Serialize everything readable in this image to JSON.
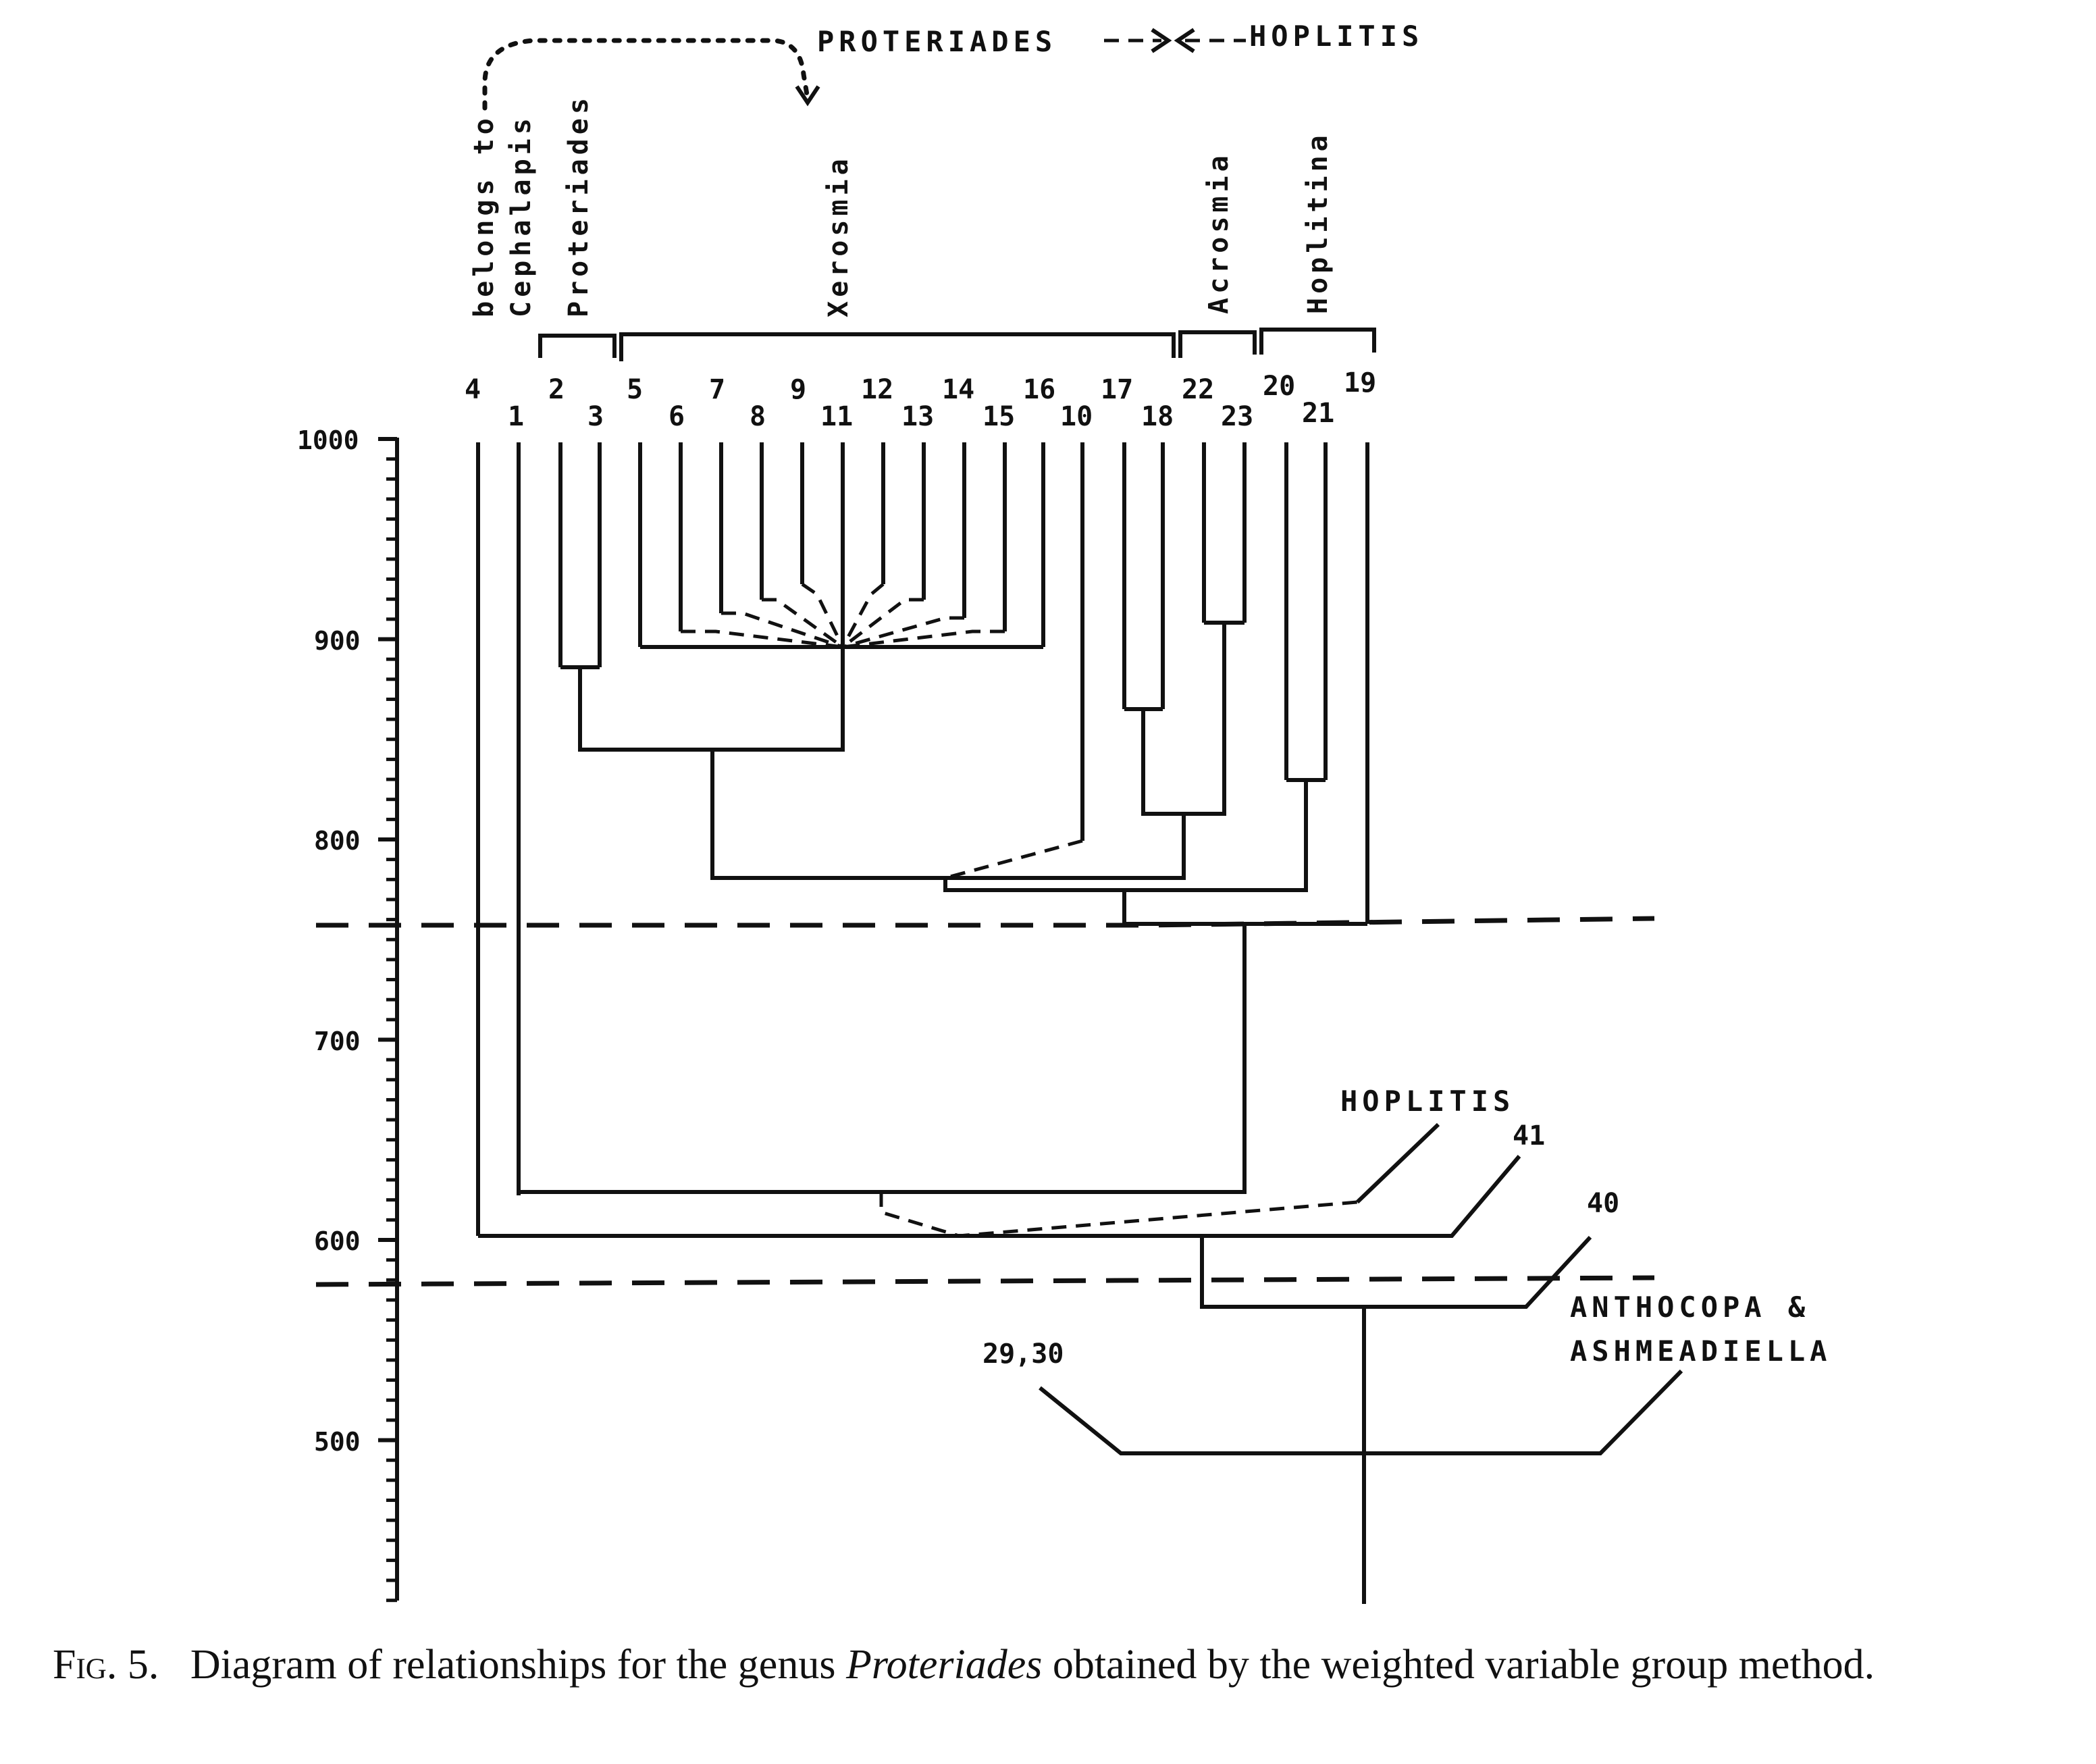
{
  "top_header": {
    "left": "PROTERIADES",
    "right": "HOPLITIS"
  },
  "group_labels": {
    "cephalapis_line1": "belongs to",
    "cephalapis_line2": "Cephalapis",
    "proteriades": "Proteriades",
    "xerosmia": "Xerosmia",
    "acrosmia": "Acrosmia",
    "hoplitina": "Hoplitina"
  },
  "leaf_labels": [
    "4",
    "1",
    "2",
    "3",
    "5",
    "6",
    "7",
    "8",
    "9",
    "11",
    "12",
    "13",
    "14",
    "15",
    "16",
    "10",
    "17",
    "18",
    "22",
    "23",
    "20",
    "21",
    "19"
  ],
  "axis": {
    "ticks": [
      "1000",
      "900",
      "800",
      "700",
      "600",
      "500"
    ]
  },
  "outgroups": {
    "hoplitis": "HOPLITIS",
    "n41": "41",
    "n40": "40",
    "anthocopa_line1": "ANTHOCOPA &",
    "anthocopa_line2": "ASHMEADIELLA",
    "n2930": "29,30"
  },
  "caption": {
    "fig_label": "Fig. 5.",
    "text_before": "Diagram of relationships for the genus",
    "genus": "Proteriades",
    "text_after": "obtained by the weighted variable group method."
  }
}
